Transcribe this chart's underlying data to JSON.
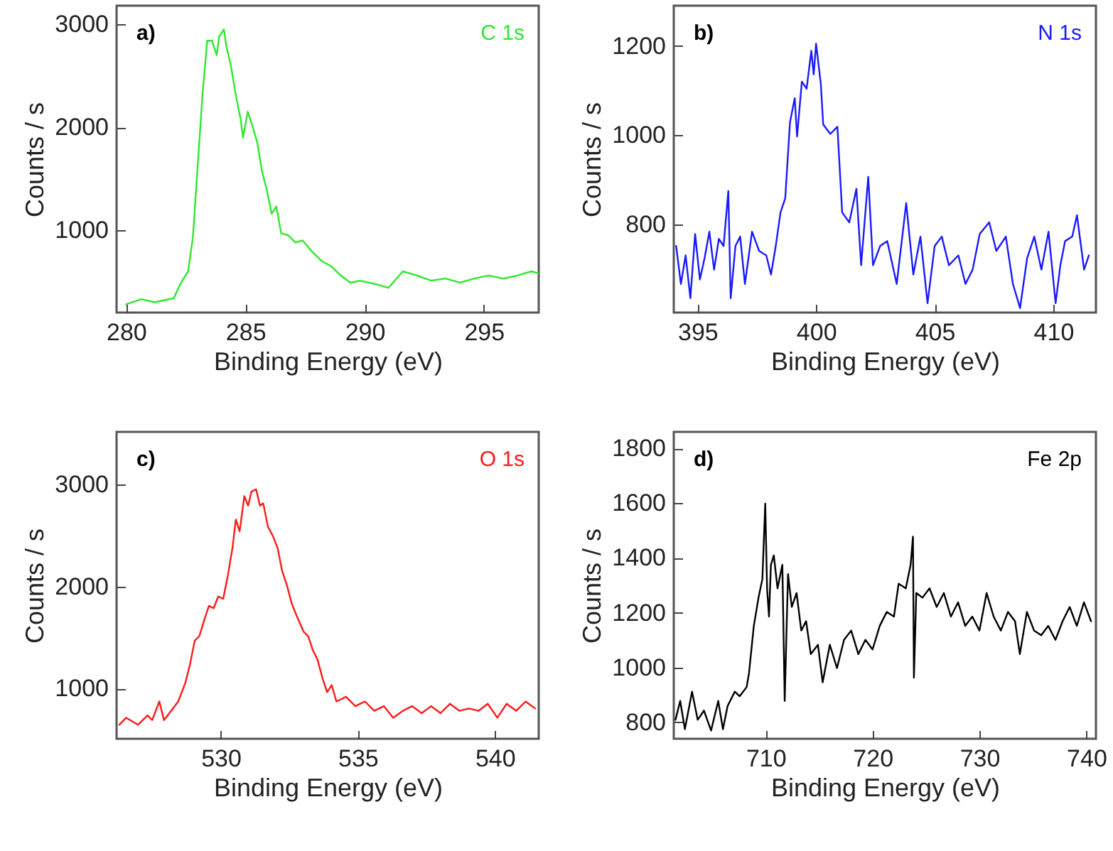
{
  "chart_data": [
    {
      "type": "line",
      "xlabel": "Binding Energy (eV)",
      "ylabel": "Counts / s",
      "annotations": [
        "a)"
      ],
      "xlim": [
        279.6,
        297.3
      ],
      "ylim": [
        200,
        3180
      ],
      "xticks": [
        280,
        285,
        290,
        295
      ],
      "yticks": [
        1000,
        2000,
        3000
      ],
      "x": [
        280,
        280.64,
        281.2,
        282.0,
        282.3,
        282.6,
        282.8,
        283.0,
        283.2,
        283.4,
        283.6,
        283.8,
        283.9,
        284.1,
        284.2,
        284.4,
        284.6,
        284.8,
        284.9,
        285.1,
        285.3,
        285.5,
        285.7,
        285.9,
        286.1,
        286.3,
        286.5,
        286.8,
        287.1,
        287.4,
        287.8,
        288.2,
        288.6,
        289.0,
        289.4,
        289.8,
        290.4,
        291.0,
        291.6,
        292.2,
        292.8,
        293.4,
        294.0,
        294.6,
        295.2,
        295.8,
        296.4,
        297.0,
        297.3
      ],
      "series": [
        {
          "name": "C 1s",
          "color": "#2ee82e",
          "values": [
            280,
            330,
            300,
            340,
            490,
            600,
            930,
            1620,
            2310,
            2840,
            2840,
            2700,
            2880,
            2950,
            2790,
            2590,
            2310,
            2080,
            1900,
            2150,
            2010,
            1850,
            1570,
            1390,
            1160,
            1230,
            970,
            950,
            880,
            900,
            790,
            700,
            650,
            560,
            490,
            510,
            480,
            440,
            600,
            560,
            510,
            530,
            490,
            530,
            560,
            530,
            560,
            600,
            580
          ]
        }
      ]
    },
    {
      "type": "line",
      "xlabel": "Binding Energy (eV)",
      "ylabel": "Counts / s",
      "annotations": [
        "b)"
      ],
      "xlim": [
        394.0,
        411.8
      ],
      "ylim": [
        603,
        1290
      ],
      "xticks": [
        395,
        400,
        405,
        410
      ],
      "yticks": [
        800,
        1000,
        1200
      ],
      "x": [
        394.1,
        394.3,
        394.5,
        394.7,
        394.9,
        395.1,
        395.3,
        395.5,
        395.7,
        395.9,
        396.1,
        396.3,
        396.4,
        396.6,
        396.8,
        397.0,
        397.3,
        397.6,
        397.9,
        398.1,
        398.3,
        398.5,
        398.7,
        398.9,
        399.1,
        399.2,
        399.4,
        399.6,
        399.8,
        399.9,
        400.0,
        400.2,
        400.3,
        400.6,
        400.9,
        401.1,
        401.4,
        401.7,
        401.9,
        402.2,
        402.4,
        402.7,
        403.0,
        403.4,
        403.8,
        404.1,
        404.4,
        404.7,
        405.0,
        405.3,
        405.6,
        406.0,
        406.3,
        406.6,
        406.9,
        407.3,
        407.6,
        408.0,
        408.3,
        408.6,
        408.9,
        409.2,
        409.5,
        409.8,
        410.1,
        410.3,
        410.5,
        410.8,
        411.0,
        411.3,
        411.5
      ],
      "series": [
        {
          "name": "N 1s",
          "color": "#1a1aff",
          "values": [
            752,
            667,
            731,
            635,
            779,
            677,
            725,
            784,
            699,
            768,
            752,
            875,
            635,
            752,
            773,
            667,
            784,
            741,
            731,
            688,
            752,
            827,
            859,
            1029,
            1083,
            997,
            1120,
            1104,
            1189,
            1136,
            1205,
            1115,
            1024,
            1003,
            1019,
            827,
            805,
            880,
            709,
            907,
            709,
            752,
            763,
            667,
            848,
            688,
            773,
            624,
            752,
            773,
            709,
            731,
            667,
            699,
            779,
            805,
            741,
            773,
            667,
            613,
            725,
            773,
            699,
            784,
            624,
            709,
            763,
            773,
            821,
            699,
            731
          ]
        }
      ]
    },
    {
      "type": "line",
      "xlabel": "Binding Energy (eV)",
      "ylabel": "Counts / s",
      "annotations": [
        "c)"
      ],
      "xlim": [
        526.2,
        541.6
      ],
      "ylim": [
        506,
        3517
      ],
      "xticks": [
        530,
        535,
        540
      ],
      "yticks": [
        1000,
        2000,
        3000
      ],
      "x": [
        526.3,
        526.55,
        526.98,
        527.33,
        527.5,
        527.76,
        527.93,
        528.19,
        528.45,
        528.71,
        528.88,
        529.05,
        529.22,
        529.4,
        529.57,
        529.74,
        529.91,
        530.09,
        530.26,
        530.43,
        530.55,
        530.69,
        530.86,
        531.0,
        531.12,
        531.29,
        531.43,
        531.55,
        531.72,
        531.9,
        532.07,
        532.24,
        532.41,
        532.59,
        532.76,
        533.02,
        533.19,
        533.36,
        533.53,
        533.71,
        533.88,
        534.05,
        534.22,
        534.57,
        534.91,
        535.26,
        535.6,
        535.95,
        536.29,
        536.64,
        536.98,
        537.33,
        537.67,
        538.02,
        538.36,
        538.71,
        539.05,
        539.4,
        539.74,
        540.09,
        540.43,
        540.78,
        541.12,
        541.47
      ],
      "series": [
        {
          "name": "O 1s",
          "color": "#ff1a1a",
          "values": [
            643,
            712,
            643,
            735,
            689,
            872,
            689,
            780,
            872,
            1055,
            1238,
            1467,
            1513,
            1673,
            1810,
            1787,
            1902,
            1879,
            2108,
            2382,
            2657,
            2542,
            2886,
            2794,
            2931,
            2954,
            2794,
            2817,
            2588,
            2497,
            2382,
            2153,
            2016,
            1833,
            1719,
            1558,
            1513,
            1375,
            1284,
            1101,
            963,
            1032,
            872,
            918,
            826,
            872,
            780,
            826,
            712,
            780,
            826,
            757,
            826,
            757,
            849,
            780,
            803,
            780,
            849,
            712,
            849,
            780,
            872,
            803
          ]
        }
      ]
    },
    {
      "type": "line",
      "xlabel": "Binding Energy (eV)",
      "ylabel": "Counts / s",
      "annotations": [
        "d)"
      ],
      "xlim": [
        701.4,
        740.9
      ],
      "ylim": [
        740,
        1860
      ],
      "xticks": [
        710,
        720,
        730,
        740
      ],
      "yticks": [
        800,
        1000,
        1200,
        1400,
        1600,
        1800
      ],
      "x": [
        701.56,
        702.0,
        702.44,
        703.11,
        703.64,
        704.22,
        704.89,
        705.56,
        706.0,
        706.44,
        707.11,
        707.56,
        708.22,
        708.44,
        708.89,
        709.33,
        709.69,
        709.96,
        710.13,
        710.31,
        710.49,
        710.76,
        711.11,
        711.56,
        711.78,
        712.09,
        712.44,
        712.89,
        713.33,
        713.78,
        714.22,
        714.89,
        715.33,
        716.0,
        716.67,
        717.33,
        718.0,
        718.67,
        719.33,
        720.0,
        720.67,
        721.33,
        722.0,
        722.44,
        723.11,
        723.56,
        723.78,
        723.87,
        724.09,
        724.67,
        725.33,
        726.0,
        726.67,
        727.33,
        728.0,
        728.67,
        729.33,
        730.0,
        730.67,
        731.33,
        732.0,
        732.67,
        733.33,
        733.78,
        734.44,
        735.11,
        735.78,
        736.44,
        737.11,
        737.78,
        738.44,
        739.11,
        739.78,
        740.44
      ],
      "series": [
        {
          "name": "Fe 2p",
          "color": "#000000",
          "values": [
            809,
            878,
            775,
            912,
            809,
            843,
            770,
            878,
            775,
            860,
            912,
            895,
            929,
            980,
            1152,
            1255,
            1323,
            1598,
            1289,
            1186,
            1375,
            1409,
            1289,
            1375,
            878,
            1341,
            1221,
            1272,
            1135,
            1169,
            1049,
            1083,
            946,
            1083,
            998,
            1101,
            1135,
            1049,
            1101,
            1066,
            1152,
            1203,
            1186,
            1306,
            1289,
            1375,
            1478,
            963,
            1272,
            1255,
            1289,
            1221,
            1272,
            1186,
            1238,
            1152,
            1186,
            1135,
            1272,
            1186,
            1135,
            1203,
            1169,
            1049,
            1203,
            1135,
            1118,
            1152,
            1101,
            1169,
            1221,
            1152,
            1238,
            1169
          ]
        }
      ]
    }
  ]
}
